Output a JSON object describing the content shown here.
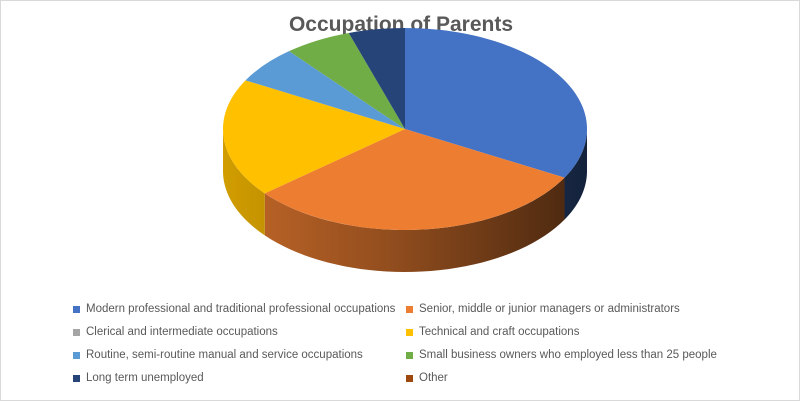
{
  "chart_data": {
    "type": "pie",
    "title": "Occupation of Parents",
    "three_d": true,
    "legend_position": "bottom",
    "series": [
      {
        "categories": [
          "Modern professional and traditional professional occupations",
          "Senior, middle or junior managers or administrators",
          "Clerical and intermediate occupations",
          "Technical and craft occupations",
          "Routine, semi-routine manual and service occupations",
          "Small business owners who employed less than 25 people",
          "Long term unemployed",
          "Other"
        ],
        "values": [
          33,
          31,
          0,
          19,
          6,
          6,
          5,
          0
        ]
      }
    ],
    "colors": [
      "#4472C4",
      "#ED7D31",
      "#A5A5A5",
      "#FFC000",
      "#5B9BD5",
      "#70AD47",
      "#264478",
      "#9E480E"
    ]
  }
}
